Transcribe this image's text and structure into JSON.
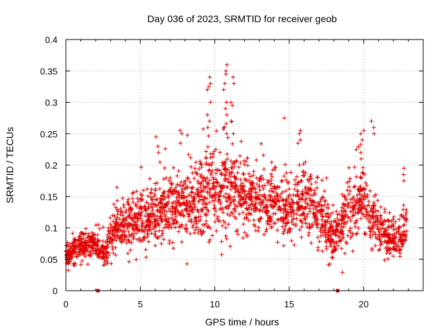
{
  "chart_data": {
    "type": "scatter",
    "title": "Day 036 of 2023, SRMTID for receiver geob",
    "xlabel": "GPS time / hours",
    "ylabel": "SRMTID / TECUs",
    "xlim": [
      0,
      24
    ],
    "ylim": [
      0,
      0.4
    ],
    "x_ticks": [
      0,
      5,
      10,
      15,
      20
    ],
    "x_tick_labels": [
      "0",
      "5",
      "10",
      "15",
      "20"
    ],
    "y_ticks": [
      0,
      0.05,
      0.1,
      0.15,
      0.2,
      0.25,
      0.3,
      0.35,
      0.4
    ],
    "y_tick_labels": [
      "0",
      "0.05",
      "0.1",
      "0.15",
      "0.2",
      "0.25",
      "0.3",
      "0.35",
      "0.4"
    ],
    "grid": true,
    "marker": "+",
    "color": "#e00000",
    "data_gaps_at_zero": [
      2.15,
      18.25
    ],
    "series": [
      {
        "name": "SRMTID",
        "profile": {
          "x": [
            0.0,
            0.5,
            1.0,
            1.5,
            2.0,
            2.3,
            2.7,
            3.2,
            3.6,
            4.0,
            4.5,
            5.0,
            5.5,
            6.0,
            6.5,
            7.0,
            7.5,
            8.0,
            8.5,
            9.0,
            9.5,
            10.0,
            10.5,
            11.0,
            11.5,
            12.0,
            12.5,
            13.0,
            13.5,
            14.0,
            14.5,
            15.0,
            15.5,
            16.0,
            16.5,
            17.0,
            17.5,
            17.9,
            18.3,
            18.7,
            19.0,
            19.5,
            20.0,
            20.5,
            21.0,
            21.5,
            22.0,
            22.5,
            22.9
          ],
          "y_center": [
            0.055,
            0.065,
            0.07,
            0.072,
            0.075,
            0.06,
            0.065,
            0.09,
            0.105,
            0.11,
            0.11,
            0.115,
            0.115,
            0.12,
            0.125,
            0.13,
            0.13,
            0.135,
            0.14,
            0.15,
            0.155,
            0.16,
            0.165,
            0.17,
            0.155,
            0.15,
            0.14,
            0.14,
            0.135,
            0.135,
            0.13,
            0.13,
            0.13,
            0.14,
            0.14,
            0.12,
            0.1,
            0.085,
            0.095,
            0.115,
            0.125,
            0.13,
            0.14,
            0.12,
            0.095,
            0.085,
            0.08,
            0.085,
            0.11
          ],
          "spread": [
            0.018,
            0.018,
            0.02,
            0.02,
            0.02,
            0.018,
            0.02,
            0.03,
            0.035,
            0.035,
            0.04,
            0.04,
            0.04,
            0.045,
            0.045,
            0.05,
            0.05,
            0.05,
            0.05,
            0.055,
            0.06,
            0.06,
            0.065,
            0.065,
            0.055,
            0.05,
            0.05,
            0.05,
            0.045,
            0.045,
            0.045,
            0.045,
            0.045,
            0.05,
            0.05,
            0.045,
            0.04,
            0.03,
            0.035,
            0.04,
            0.045,
            0.05,
            0.05,
            0.045,
            0.03,
            0.03,
            0.03,
            0.03,
            0.035
          ]
        },
        "spikes": [
          {
            "x": 9.6,
            "y_values": [
              0.34,
              0.33,
              0.325,
              0.32,
              0.3,
              0.28,
              0.27,
              0.26
            ]
          },
          {
            "x": 10.7,
            "y_values": [
              0.36,
              0.35,
              0.345,
              0.33,
              0.32,
              0.3,
              0.29,
              0.28,
              0.26,
              0.25
            ]
          },
          {
            "x": 11.2,
            "y_values": [
              0.34,
              0.33,
              0.3,
              0.295,
              0.27,
              0.25
            ]
          },
          {
            "x": 15.7,
            "y_values": [
              0.255,
              0.25,
              0.24,
              0.235
            ]
          },
          {
            "x": 19.9,
            "y_values": [
              0.255,
              0.25,
              0.24,
              0.22,
              0.21
            ]
          },
          {
            "x": 20.6,
            "y_values": [
              0.27,
              0.26,
              0.25
            ]
          },
          {
            "x": 22.6,
            "y_values": [
              0.195,
              0.185,
              0.175
            ]
          },
          {
            "x": 7.7,
            "y_values": [
              0.255,
              0.25,
              0.235
            ]
          },
          {
            "x": 6.1,
            "y_values": [
              0.245,
              0.23,
              0.22
            ]
          }
        ],
        "point_count": 2400
      }
    ]
  }
}
